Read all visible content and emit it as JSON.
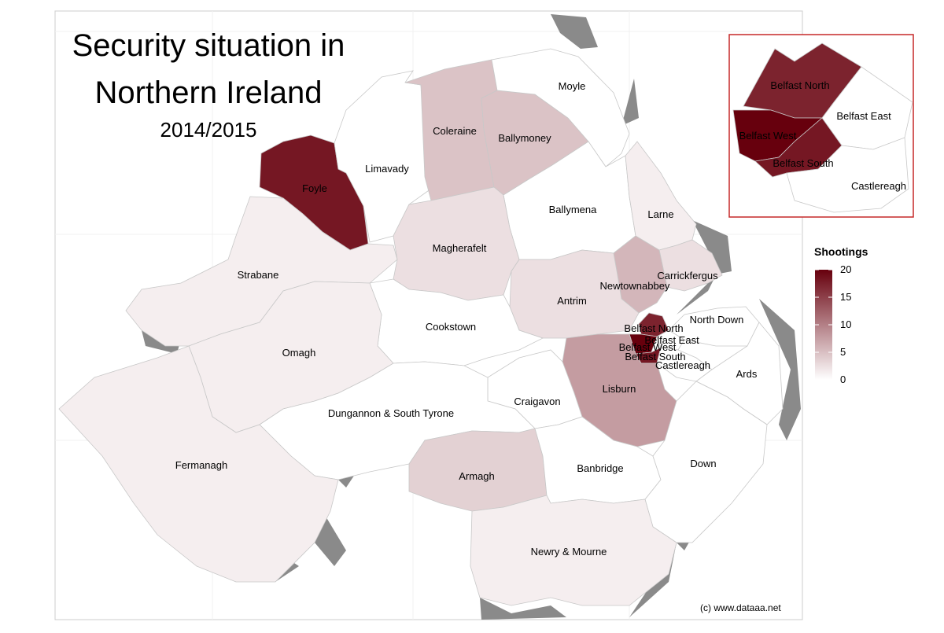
{
  "title_line1": "Security situation in",
  "title_line2": "Northern Ireland",
  "subtitle": "2014/2015",
  "credit": "(c) www.dataaa.net",
  "legend": {
    "title": "Shootings",
    "ticks": [
      "20",
      "15",
      "10",
      "5",
      "0"
    ],
    "min": 0,
    "max": 20,
    "color_low": "#ffffff",
    "color_high": "#67000d"
  },
  "regions": [
    {
      "name": "Foyle",
      "value": 18
    },
    {
      "name": "Limavady",
      "value": 0
    },
    {
      "name": "Coleraine",
      "value": 4
    },
    {
      "name": "Ballymoney",
      "value": 4
    },
    {
      "name": "Moyle",
      "value": 0
    },
    {
      "name": "Ballymena",
      "value": 0
    },
    {
      "name": "Larne",
      "value": 1
    },
    {
      "name": "Strabane",
      "value": 1
    },
    {
      "name": "Magherafelt",
      "value": 2
    },
    {
      "name": "Carrickfergus",
      "value": 2
    },
    {
      "name": "Newtownabbey",
      "value": 5
    },
    {
      "name": "Antrim",
      "value": 2
    },
    {
      "name": "Cookstown",
      "value": 0
    },
    {
      "name": "Omagh",
      "value": 1
    },
    {
      "name": "Belfast North",
      "value": 17
    },
    {
      "name": "North Down",
      "value": 0
    },
    {
      "name": "Belfast East",
      "value": 0
    },
    {
      "name": "Belfast West",
      "value": 20
    },
    {
      "name": "Belfast South",
      "value": 18
    },
    {
      "name": "Castlereagh",
      "value": 0
    },
    {
      "name": "Ards",
      "value": 0
    },
    {
      "name": "Lisburn",
      "value": 7
    },
    {
      "name": "Craigavon",
      "value": 0
    },
    {
      "name": "Dungannon & South Tyrone",
      "value": 0
    },
    {
      "name": "Fermanagh",
      "value": 1
    },
    {
      "name": "Armagh",
      "value": 3
    },
    {
      "name": "Banbridge",
      "value": 0
    },
    {
      "name": "Down",
      "value": 0
    },
    {
      "name": "Newry & Mourne",
      "value": 1
    }
  ],
  "inset_labels": [
    "Belfast North",
    "Belfast East",
    "Belfast West",
    "Belfast South",
    "Castlereagh"
  ]
}
